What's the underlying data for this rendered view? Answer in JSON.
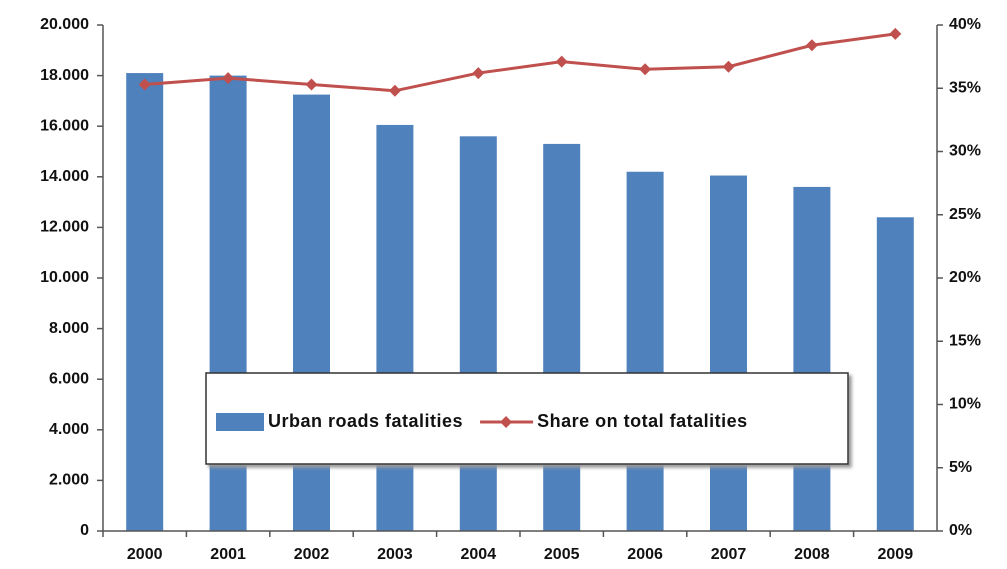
{
  "chart_data": {
    "type": "bar",
    "categories": [
      "2000",
      "2001",
      "2002",
      "2003",
      "2004",
      "2005",
      "2006",
      "2007",
      "2008",
      "2009"
    ],
    "series": [
      {
        "name": "Urban roads fatalities",
        "type": "bar",
        "color": "#4f81bd",
        "values": [
          18100,
          18000,
          17250,
          16050,
          15600,
          15300,
          14200,
          14050,
          13600,
          12400
        ]
      },
      {
        "name": "Share on total fatalities",
        "type": "line",
        "axis": "y2",
        "color": "#c0504d",
        "values": [
          35.3,
          35.8,
          35.3,
          34.8,
          36.2,
          37.1,
          36.5,
          36.7,
          38.4,
          39.3
        ]
      }
    ],
    "ylim": [
      0,
      20000
    ],
    "yticks": [
      0,
      {
        "value": 2000,
        "label": "2.000"
      },
      {
        "value": 4000,
        "label": "4.000"
      },
      {
        "value": 6000,
        "label": "6.000"
      },
      {
        "value": 8000,
        "label": "8.000"
      },
      {
        "value": 10000,
        "label": "10.000"
      },
      {
        "value": 12000,
        "label": "12.000"
      },
      {
        "value": 14000,
        "label": "14.000"
      },
      {
        "value": 16000,
        "label": "16.000"
      },
      {
        "value": 18000,
        "label": "18.000"
      },
      {
        "value": 20000,
        "label": "20.000"
      }
    ],
    "y2lim": [
      0,
      40
    ],
    "y2ticks": [
      {
        "value": 0,
        "label": "0%"
      },
      {
        "value": 5,
        "label": "5%"
      },
      {
        "value": 10,
        "label": "10%"
      },
      {
        "value": 15,
        "label": "15%"
      },
      {
        "value": 20,
        "label": "20%"
      },
      {
        "value": 25,
        "label": "25%"
      },
      {
        "value": 30,
        "label": "30%"
      },
      {
        "value": 35,
        "label": "35%"
      },
      {
        "value": 40,
        "label": "40%"
      }
    ],
    "legend": "center"
  }
}
